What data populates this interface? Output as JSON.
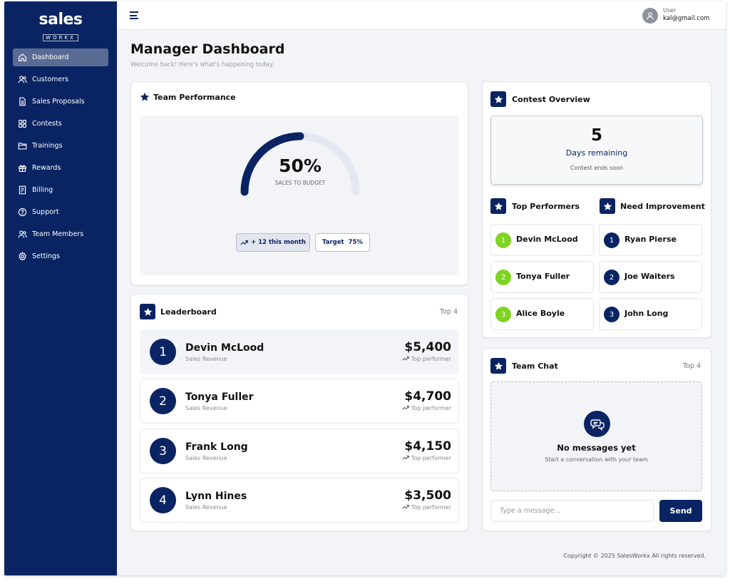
{
  "brand": {
    "line1": "sales",
    "line2": "WORKX"
  },
  "sidebar": {
    "items": [
      {
        "label": "Dashboard",
        "icon": "home-icon",
        "active": true
      },
      {
        "label": "Customers",
        "icon": "users-icon"
      },
      {
        "label": "Sales Proposals",
        "icon": "document-icon"
      },
      {
        "label": "Contests",
        "icon": "grid-icon"
      },
      {
        "label": "Trainings",
        "icon": "folder-icon"
      },
      {
        "label": "Rewards",
        "icon": "gift-icon"
      },
      {
        "label": "Billing",
        "icon": "receipt-icon"
      },
      {
        "label": "Support",
        "icon": "help-icon"
      },
      {
        "label": "Team Members",
        "icon": "team-icon"
      },
      {
        "label": "Settings",
        "icon": "gear-icon"
      }
    ]
  },
  "header": {
    "user_role": "User",
    "user_email": "kal@gmail.com"
  },
  "page": {
    "title": "Manager Dashboard",
    "subtitle": "Welcome back! Here's what's happening today."
  },
  "team_performance": {
    "title": "Team Performance",
    "gauge_value": 50,
    "gauge_label": "50%",
    "gauge_caption": "SALES TO BUDGET",
    "trend_label": "+ 12 this month",
    "target_label": "Target",
    "target_value": "75%"
  },
  "leaderboard": {
    "title": "Leaderboard",
    "scope": "Top 4",
    "rows": [
      {
        "rank": "1",
        "name": "Devin McLood",
        "sub": "Sales Revenue",
        "amount": "$5,400",
        "tag": "Top performer"
      },
      {
        "rank": "2",
        "name": "Tonya Fuller",
        "sub": "Sales Revenue",
        "amount": "$4,700",
        "tag": "Top performer"
      },
      {
        "rank": "3",
        "name": "Frank Long",
        "sub": "Sales Revenue",
        "amount": "$4,150",
        "tag": "Top performer"
      },
      {
        "rank": "4",
        "name": "Lynn Hines",
        "sub": "Sales Revenue",
        "amount": "$3,500",
        "tag": "Top performer"
      }
    ]
  },
  "contest": {
    "title": "Contest Overview",
    "days": "5",
    "days_label": "Days remaining",
    "ends_label": "Contest ends soon"
  },
  "top_performers": {
    "title": "Top Performers",
    "items": [
      {
        "rank": "1",
        "name": "Devin McLood"
      },
      {
        "rank": "2",
        "name": "Tonya Fuller"
      },
      {
        "rank": "3",
        "name": "Alice Boyle"
      }
    ]
  },
  "need_improvement": {
    "title": "Need Improvement",
    "items": [
      {
        "rank": "1",
        "name": "Ryan Pierse"
      },
      {
        "rank": "2",
        "name": "Joe Waiters"
      },
      {
        "rank": "3",
        "name": "John Long"
      }
    ]
  },
  "team_chat": {
    "title": "Team Chat",
    "scope": "Top 4",
    "empty_title": "No messages yet",
    "empty_sub": "Start a conversation with your team",
    "input_placeholder": "Type a message...",
    "send_label": "Send"
  },
  "footer": {
    "text": "Copyright © 2025 SalesWorkx All rights reserved."
  },
  "colors": {
    "navy": "#0a2463",
    "green": "#7ed321",
    "gauge_track": "#e3e8f1"
  }
}
